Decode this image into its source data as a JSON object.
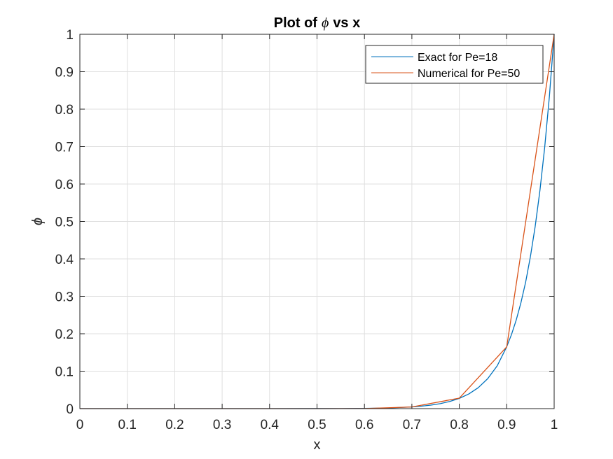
{
  "chart_data": {
    "type": "line",
    "title_prefix": "Plot of",
    "title_symbol": "ϕ",
    "title_suffix": "vs x",
    "xlabel": "x",
    "ylabel": "ϕ",
    "xlim": [
      0,
      1
    ],
    "ylim": [
      0,
      1
    ],
    "xticks": [
      "0",
      "0.1",
      "0.2",
      "0.3",
      "0.4",
      "0.5",
      "0.6",
      "0.7",
      "0.8",
      "0.9",
      "1"
    ],
    "yticks": [
      "0",
      "0.1",
      "0.2",
      "0.3",
      "0.4",
      "0.5",
      "0.6",
      "0.7",
      "0.8",
      "0.9",
      "1"
    ],
    "grid": true,
    "legend_position": "top-right",
    "series": [
      {
        "name": "Exact for Pe=18",
        "color": "#0072BD",
        "x": [
          0,
          0.1,
          0.2,
          0.3,
          0.4,
          0.5,
          0.55,
          0.6,
          0.65,
          0.7,
          0.72,
          0.74,
          0.76,
          0.78,
          0.8,
          0.82,
          0.84,
          0.86,
          0.88,
          0.9,
          0.91,
          0.92,
          0.93,
          0.94,
          0.95,
          0.96,
          0.97,
          0.98,
          0.99,
          1.0
        ],
        "y": [
          0,
          0,
          0,
          0,
          0,
          0.0001,
          0.0003,
          0.0007,
          0.0017,
          0.0045,
          0.0065,
          0.0093,
          0.0133,
          0.0192,
          0.0273,
          0.0391,
          0.056,
          0.0801,
          0.1145,
          0.1653,
          0.1978,
          0.2366,
          0.2831,
          0.3385,
          0.4066,
          0.4867,
          0.5825,
          0.6972,
          0.8344,
          1.0
        ]
      },
      {
        "name": "Numerical for Pe=50",
        "color": "#D95319",
        "x": [
          0,
          0.1,
          0.2,
          0.3,
          0.4,
          0.5,
          0.6,
          0.7,
          0.8,
          0.9,
          1.0
        ],
        "y": [
          0,
          0,
          0,
          0,
          0,
          0,
          0.0002,
          0.0045,
          0.028,
          0.165,
          1.0
        ]
      }
    ]
  }
}
